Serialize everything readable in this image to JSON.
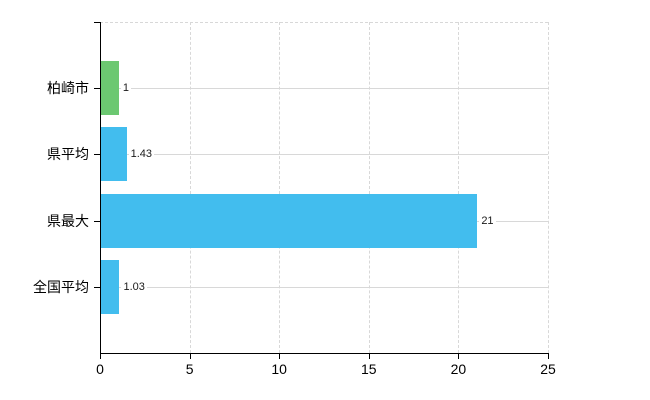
{
  "chart_data": {
    "type": "bar",
    "orientation": "horizontal",
    "title": "",
    "xlabel": "",
    "ylabel": "",
    "categories": [
      "柏崎市",
      "県平均",
      "県最大",
      "全国平均"
    ],
    "values": [
      1,
      1.43,
      21,
      1.03
    ],
    "value_labels": [
      "1",
      "1.43",
      "21",
      "1.03"
    ],
    "bar_colors": [
      "#6cc871",
      "#42bdee",
      "#42bdee",
      "#42bdee"
    ],
    "xlim": [
      0,
      25
    ],
    "xticks": [
      0,
      5,
      10,
      15,
      20,
      25
    ],
    "xtick_labels": [
      "0",
      "5",
      "10",
      "15",
      "20",
      "25"
    ],
    "grid": true,
    "legend": false,
    "colors": {
      "grid": "#d8d8d8",
      "axis": "#000000",
      "tick_text": "#000000",
      "value_text": "#1a1a1a",
      "background": "#ffffff",
      "green_bar": "#6cc871",
      "blue_bar": "#42bdee"
    }
  }
}
